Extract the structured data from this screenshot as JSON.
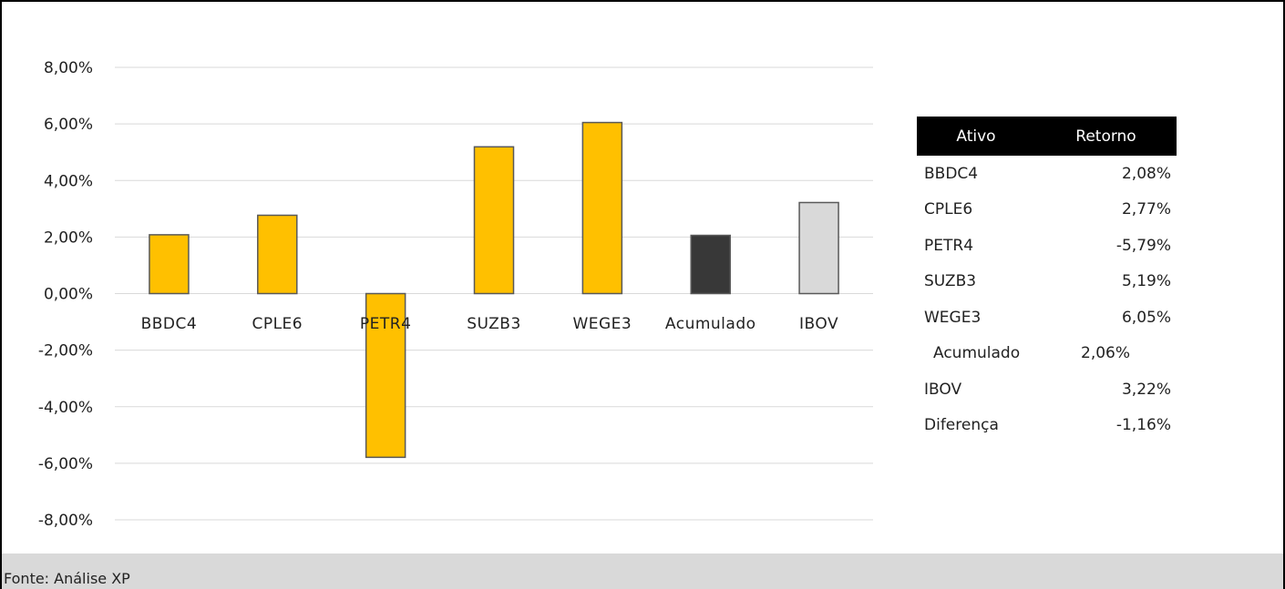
{
  "chart_data": {
    "type": "bar",
    "categories": [
      "BBDC4",
      "CPLE6",
      "PETR4",
      "SUZB3",
      "WEGE3",
      "Acumulado",
      "IBOV"
    ],
    "values": [
      2.08,
      2.77,
      -5.79,
      5.19,
      6.05,
      2.06,
      3.22
    ],
    "bar_colors": [
      "#ffc000",
      "#ffc000",
      "#ffc000",
      "#ffc000",
      "#ffc000",
      "#383838",
      "#d9d9d9"
    ],
    "yticks": [
      "8,00%",
      "6,00%",
      "4,00%",
      "2,00%",
      "0,00%",
      "-2,00%",
      "-4,00%",
      "-6,00%",
      "-8,00%"
    ],
    "ylim": [
      -8,
      8
    ],
    "grid": true,
    "title": "",
    "xlabel": "",
    "ylabel": ""
  },
  "table": {
    "headers": [
      "Ativo",
      "Retorno"
    ],
    "rows": [
      {
        "name": "BBDC4",
        "value": "2,08%"
      },
      {
        "name": "CPLE6",
        "value": "2,77%"
      },
      {
        "name": "PETR4",
        "value": "-5,79%"
      },
      {
        "name": "SUZB3",
        "value": "5,19%"
      },
      {
        "name": "WEGE3",
        "value": "6,05%"
      },
      {
        "name": "Acumulado",
        "value": "2,06%"
      },
      {
        "name": "IBOV",
        "value": "3,22%"
      },
      {
        "name": "Diferença",
        "value": "-1,16%"
      }
    ]
  },
  "footer": {
    "source": "Fonte: Análise XP"
  }
}
